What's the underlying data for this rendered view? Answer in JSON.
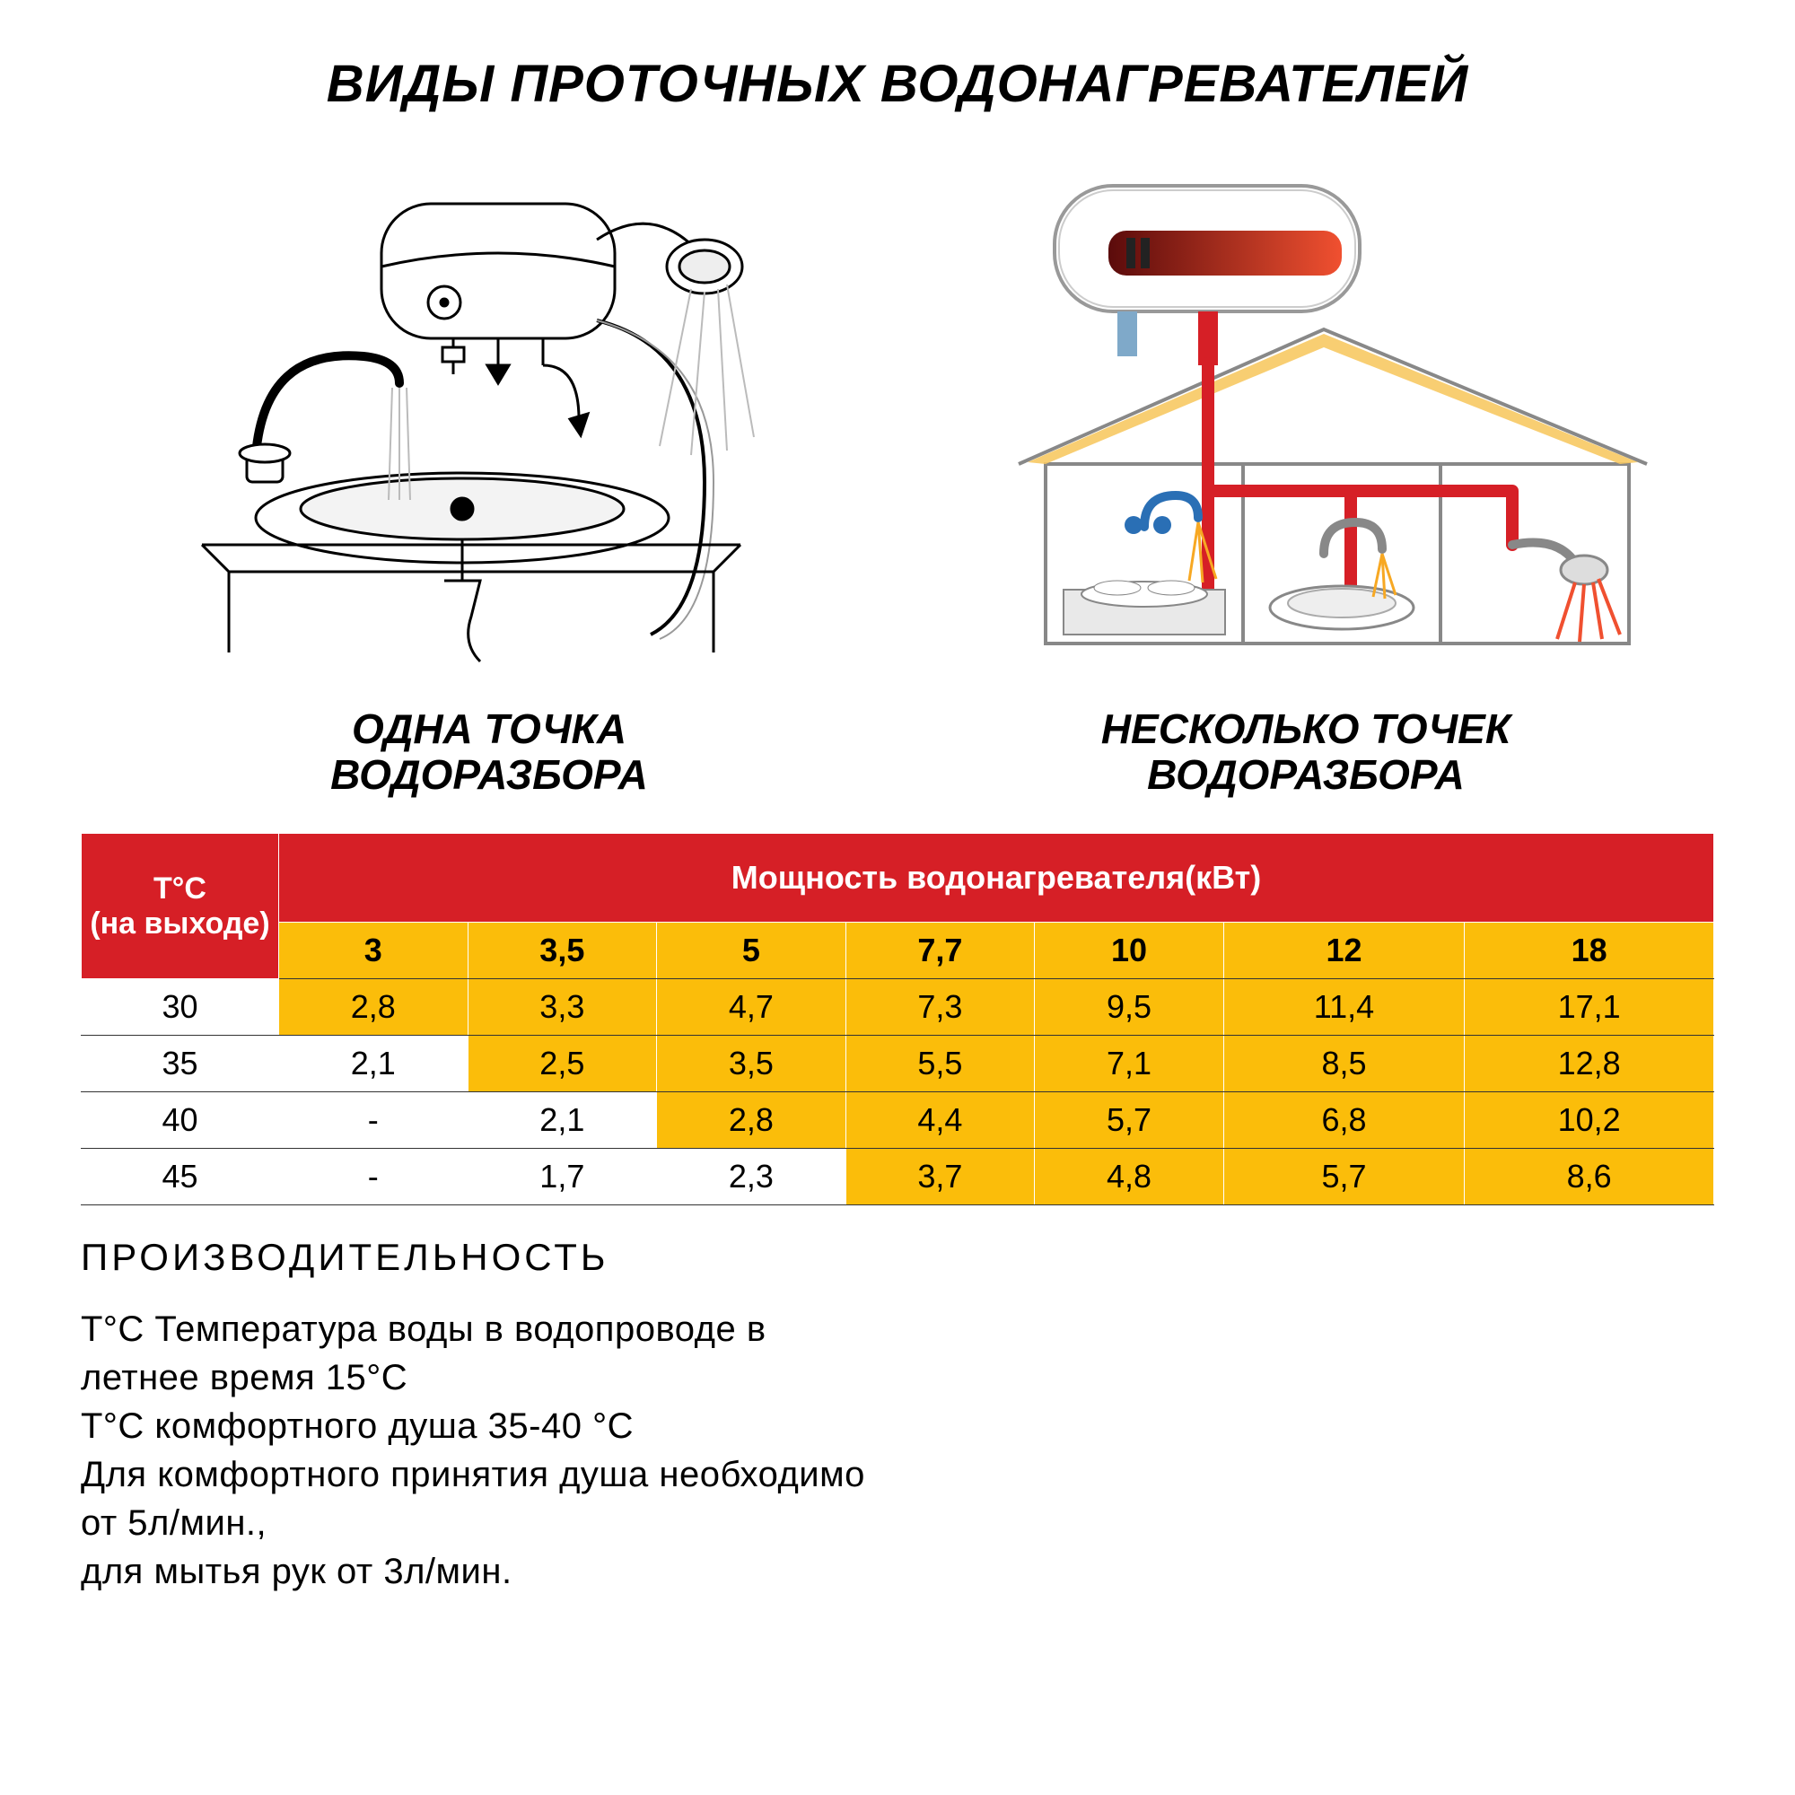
{
  "title": "ВИДЫ ПРОТОЧНЫХ ВОДОНАГРЕВАТЕЛЕЙ",
  "captions": {
    "left_line1": "ОДНА ТОЧКА",
    "left_line2": "ВОДОРАЗБОРА",
    "right_line1": "НЕСКОЛЬКО ТОЧЕК",
    "right_line2": "ВОДОРАЗБОРА"
  },
  "table": {
    "row_header": "Т°С\n(на выходе)",
    "col_group_header": "Мощность водонагревателя(кВт)",
    "power_cols": [
      "3",
      "3,5",
      "5",
      "7,7",
      "10",
      "12",
      "18"
    ],
    "rows": [
      {
        "temp": "30",
        "values": [
          "2,8",
          "3,3",
          "4,7",
          "7,3",
          "9,5",
          "11,4",
          "17,1"
        ],
        "hi": [
          1,
          1,
          1,
          1,
          1,
          1,
          1
        ]
      },
      {
        "temp": "35",
        "values": [
          "2,1",
          "2,5",
          "3,5",
          "5,5",
          "7,1",
          "8,5",
          "12,8"
        ],
        "hi": [
          0,
          1,
          1,
          1,
          1,
          1,
          1
        ]
      },
      {
        "temp": "40",
        "values": [
          "-",
          "2,1",
          "2,8",
          "4,4",
          "5,7",
          "6,8",
          "10,2"
        ],
        "hi": [
          0,
          0,
          1,
          1,
          1,
          1,
          1
        ]
      },
      {
        "temp": "45",
        "values": [
          "-",
          "1,7",
          "2,3",
          "3,7",
          "4,8",
          "5,7",
          "8,6"
        ],
        "hi": [
          0,
          0,
          0,
          1,
          1,
          1,
          1
        ]
      }
    ],
    "colors": {
      "header_bg": "#d61f26",
      "header_fg": "#ffffff",
      "hi_bg": "#fbbd0a",
      "lo_bg": "#ffffff",
      "border": "#333333"
    }
  },
  "footer": {
    "perf": "ПРОИЗВОДИТЕЛЬНОСТЬ",
    "l1": "Т°С Температура воды в водопроводе в",
    "l2": "летнее время 15°С",
    "l3": "Т°С комфортного душа 35-40 °С",
    "l4": "Для комфортного принятия душа необходимо",
    "l5": "от 5л/мин.,",
    "l6": "для мытья рук от 3л/мин."
  },
  "diagram": {
    "colors": {
      "stroke": "#000000",
      "red": "#d61f26",
      "orange": "#f7a823",
      "blue": "#2a6fb5",
      "gray": "#cfd2d6",
      "light": "#f8f8f8"
    }
  }
}
